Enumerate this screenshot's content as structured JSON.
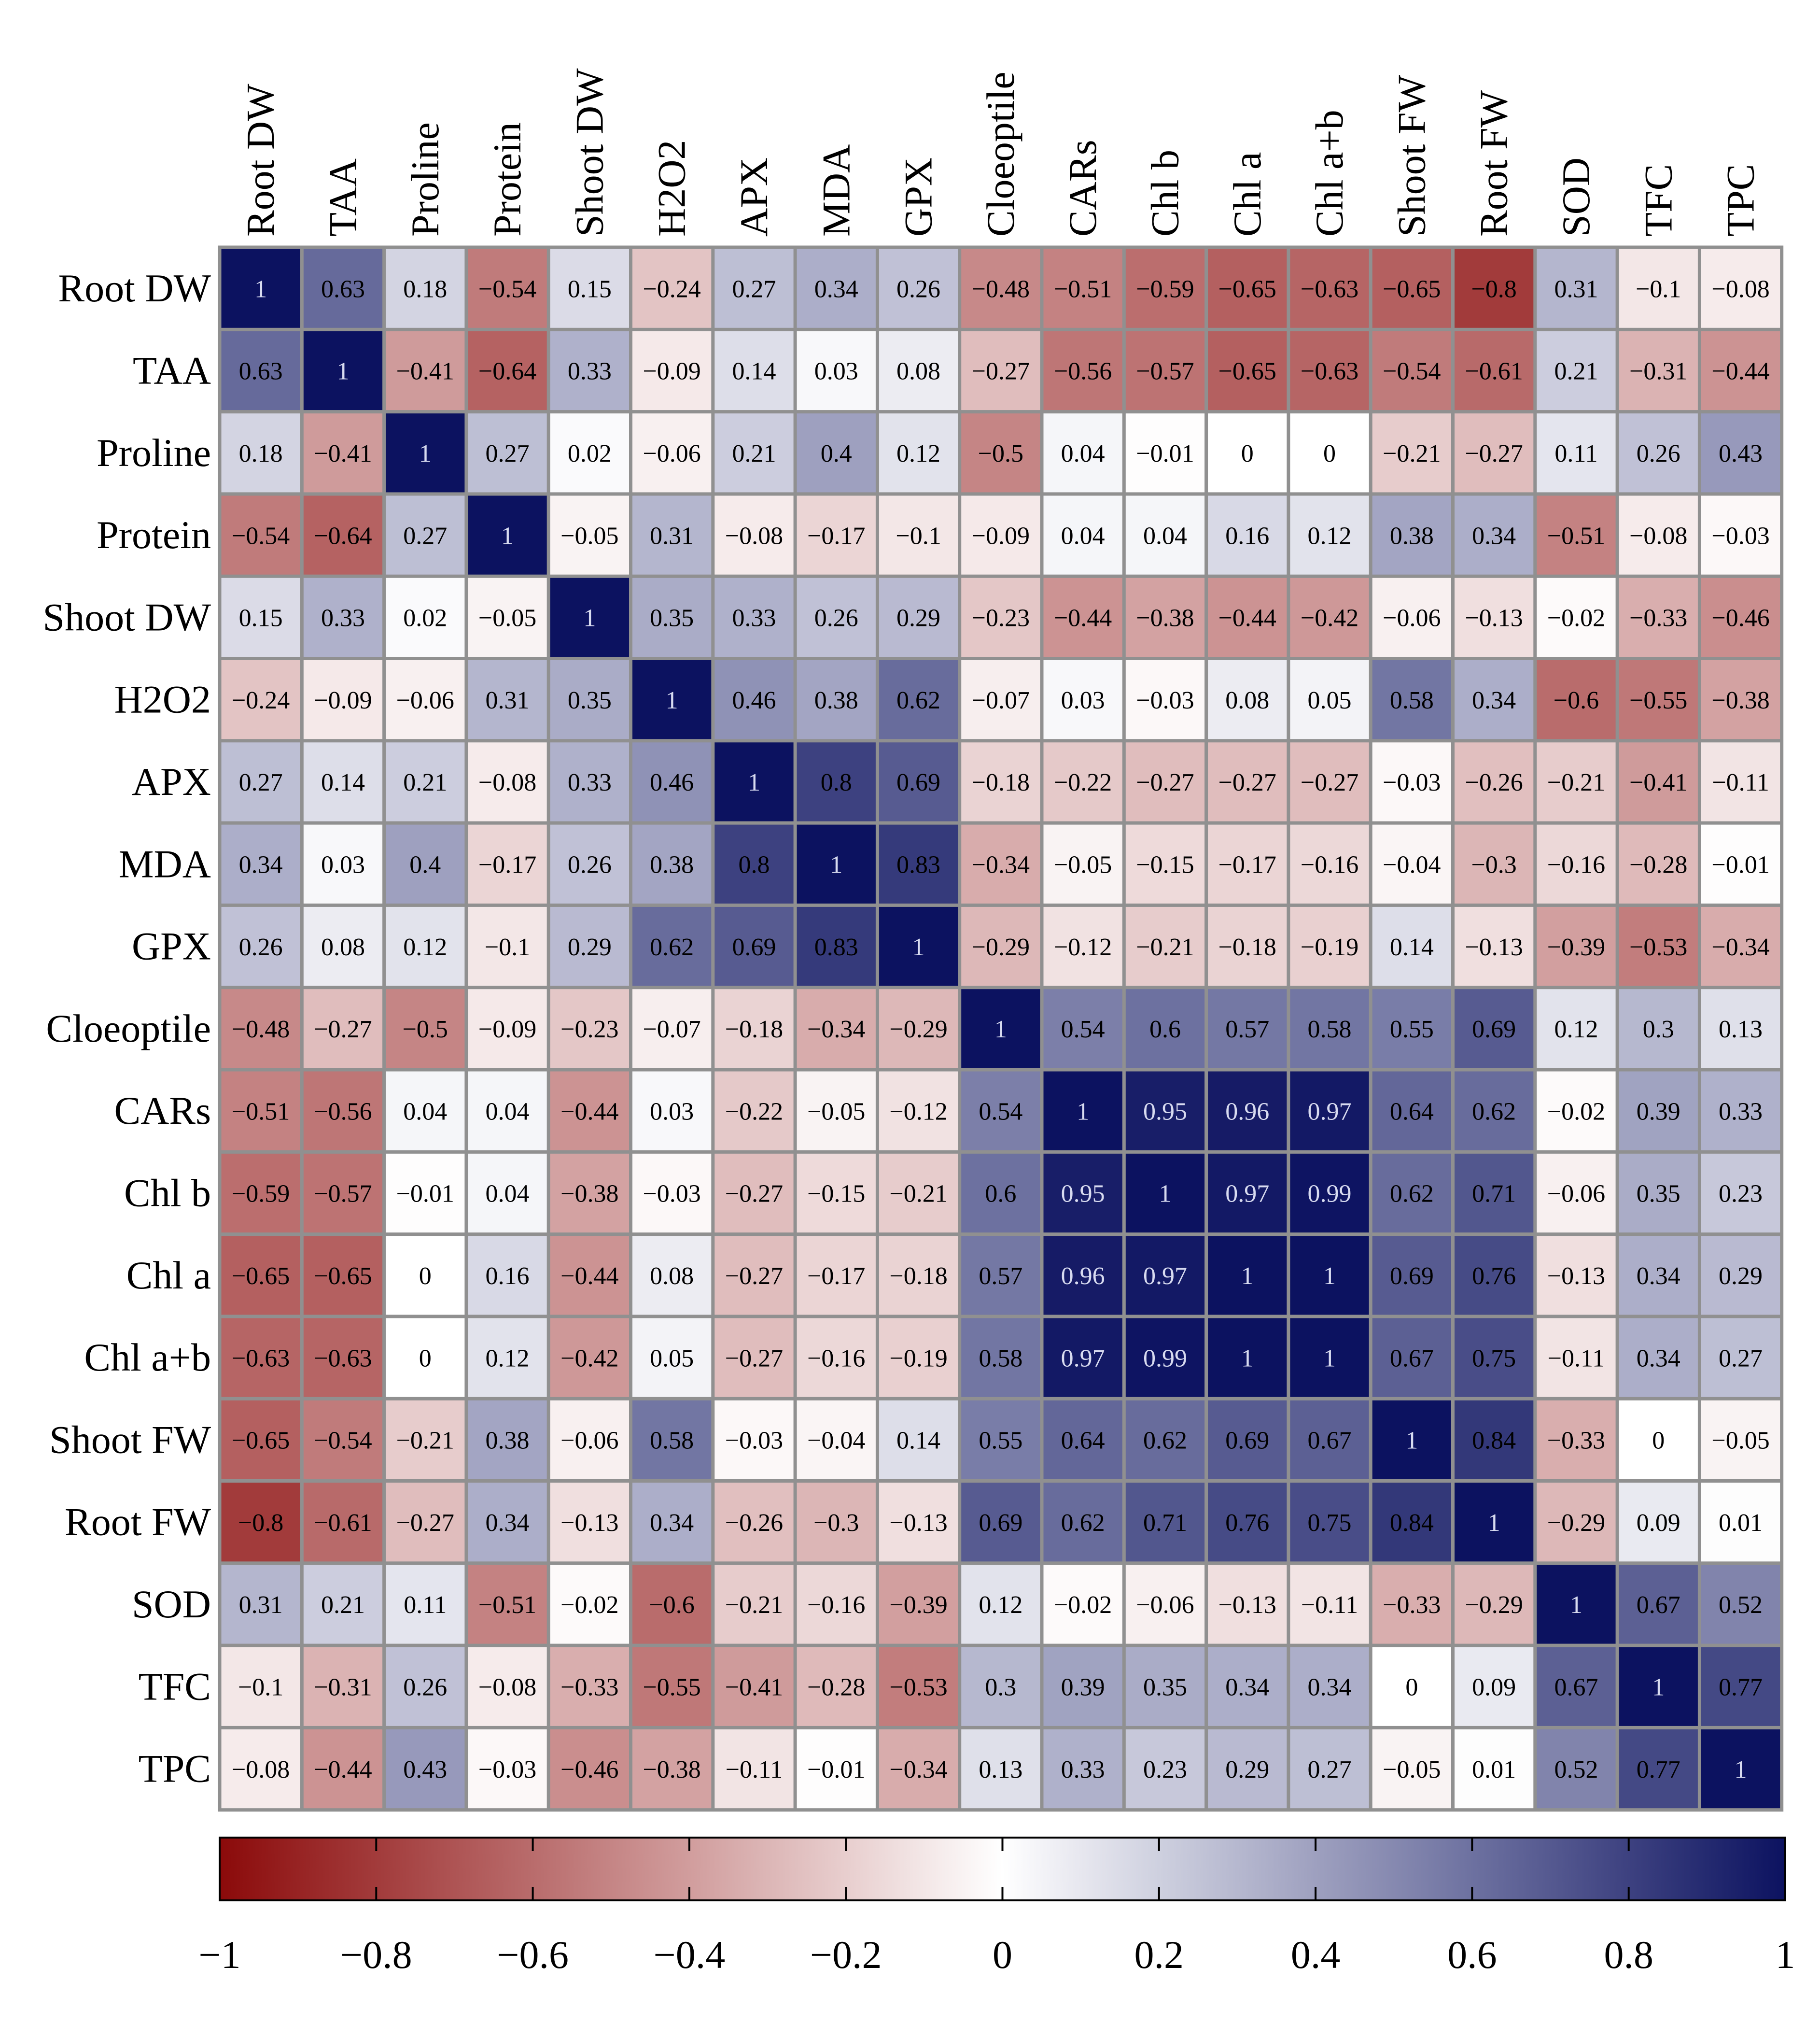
{
  "chart_data": {
    "type": "heatmap",
    "title": "",
    "xlabel": "",
    "ylabel": "",
    "variables": [
      "Root DW",
      "TAA",
      "Proline",
      "Protein",
      "Shoot DW",
      "H2O2",
      "APX",
      "MDA",
      "GPX",
      "Cloeoptile",
      "CARs",
      "Chl b",
      "Chl a",
      "Chl a+b",
      "Shoot FW",
      "Root FW",
      "SOD",
      "TFC",
      "TPC"
    ],
    "matrix": [
      [
        1,
        0.63,
        0.18,
        -0.54,
        0.15,
        -0.24,
        0.27,
        0.34,
        0.26,
        -0.48,
        -0.51,
        -0.59,
        -0.65,
        -0.63,
        -0.65,
        -0.8,
        0.31,
        -0.1,
        -0.08
      ],
      [
        0.63,
        1,
        -0.41,
        -0.64,
        0.33,
        -0.09,
        0.14,
        0.03,
        0.08,
        -0.27,
        -0.56,
        -0.57,
        -0.65,
        -0.63,
        -0.54,
        -0.61,
        0.21,
        -0.31,
        -0.44
      ],
      [
        0.18,
        -0.41,
        1,
        0.27,
        0.02,
        -0.06,
        0.21,
        0.4,
        0.12,
        -0.5,
        0.04,
        -0.01,
        0,
        0,
        -0.21,
        -0.27,
        0.11,
        0.26,
        0.43
      ],
      [
        -0.54,
        -0.64,
        0.27,
        1,
        -0.05,
        0.31,
        -0.08,
        -0.17,
        -0.1,
        -0.09,
        0.04,
        0.04,
        0.16,
        0.12,
        0.38,
        0.34,
        -0.51,
        -0.08,
        -0.03
      ],
      [
        0.15,
        0.33,
        0.02,
        -0.05,
        1,
        0.35,
        0.33,
        0.26,
        0.29,
        -0.23,
        -0.44,
        -0.38,
        -0.44,
        -0.42,
        -0.06,
        -0.13,
        -0.02,
        -0.33,
        -0.46
      ],
      [
        -0.24,
        -0.09,
        -0.06,
        0.31,
        0.35,
        1,
        0.46,
        0.38,
        0.62,
        -0.07,
        0.03,
        -0.03,
        0.08,
        0.05,
        0.58,
        0.34,
        -0.6,
        -0.55,
        -0.38
      ],
      [
        0.27,
        0.14,
        0.21,
        -0.08,
        0.33,
        0.46,
        1,
        0.8,
        0.69,
        -0.18,
        -0.22,
        -0.27,
        -0.27,
        -0.27,
        -0.03,
        -0.26,
        -0.21,
        -0.41,
        -0.11
      ],
      [
        0.34,
        0.03,
        0.4,
        -0.17,
        0.26,
        0.38,
        0.8,
        1,
        0.83,
        -0.34,
        -0.05,
        -0.15,
        -0.17,
        -0.16,
        -0.04,
        -0.3,
        -0.16,
        -0.28,
        -0.01
      ],
      [
        0.26,
        0.08,
        0.12,
        -0.1,
        0.29,
        0.62,
        0.69,
        0.83,
        1,
        -0.29,
        -0.12,
        -0.21,
        -0.18,
        -0.19,
        0.14,
        -0.13,
        -0.39,
        -0.53,
        -0.34
      ],
      [
        -0.48,
        -0.27,
        -0.5,
        -0.09,
        -0.23,
        -0.07,
        -0.18,
        -0.34,
        -0.29,
        1,
        0.54,
        0.6,
        0.57,
        0.58,
        0.55,
        0.69,
        0.12,
        0.3,
        0.13
      ],
      [
        -0.51,
        -0.56,
        0.04,
        0.04,
        -0.44,
        0.03,
        -0.22,
        -0.05,
        -0.12,
        0.54,
        1,
        0.95,
        0.96,
        0.97,
        0.64,
        0.62,
        -0.02,
        0.39,
        0.33
      ],
      [
        -0.59,
        -0.57,
        -0.01,
        0.04,
        -0.38,
        -0.03,
        -0.27,
        -0.15,
        -0.21,
        0.6,
        0.95,
        1,
        0.97,
        0.99,
        0.62,
        0.71,
        -0.06,
        0.35,
        0.23
      ],
      [
        -0.65,
        -0.65,
        0,
        0.16,
        -0.44,
        0.08,
        -0.27,
        -0.17,
        -0.18,
        0.57,
        0.96,
        0.97,
        1,
        1,
        0.69,
        0.76,
        -0.13,
        0.34,
        0.29
      ],
      [
        -0.63,
        -0.63,
        0,
        0.12,
        -0.42,
        0.05,
        -0.27,
        -0.16,
        -0.19,
        0.58,
        0.97,
        0.99,
        1,
        1,
        0.67,
        0.75,
        -0.11,
        0.34,
        0.27
      ],
      [
        -0.65,
        -0.54,
        -0.21,
        0.38,
        -0.06,
        0.58,
        -0.03,
        -0.04,
        0.14,
        0.55,
        0.64,
        0.62,
        0.69,
        0.67,
        1,
        0.84,
        -0.33,
        0,
        -0.05
      ],
      [
        -0.8,
        -0.61,
        -0.27,
        0.34,
        -0.13,
        0.34,
        -0.26,
        -0.3,
        -0.13,
        0.69,
        0.62,
        0.71,
        0.76,
        0.75,
        0.84,
        1,
        -0.29,
        0.09,
        0.01
      ],
      [
        0.31,
        0.21,
        0.11,
        -0.51,
        -0.02,
        -0.6,
        -0.21,
        -0.16,
        -0.39,
        0.12,
        -0.02,
        -0.06,
        -0.13,
        -0.11,
        -0.33,
        -0.29,
        1,
        0.67,
        0.52
      ],
      [
        -0.1,
        -0.31,
        0.26,
        -0.08,
        -0.33,
        -0.55,
        -0.41,
        -0.28,
        -0.53,
        0.3,
        0.39,
        0.35,
        0.34,
        0.34,
        0,
        0.09,
        0.67,
        1,
        0.77
      ],
      [
        -0.08,
        -0.44,
        0.43,
        -0.03,
        -0.46,
        -0.38,
        -0.11,
        -0.01,
        -0.34,
        0.13,
        0.33,
        0.23,
        0.29,
        0.27,
        -0.05,
        0.01,
        0.52,
        0.77,
        1
      ]
    ],
    "colorbar": {
      "min": -1,
      "max": 1,
      "ticks": [
        -1,
        -0.8,
        -0.6,
        -0.4,
        -0.2,
        0,
        0.2,
        0.4,
        0.6,
        0.8,
        1
      ],
      "tick_labels": [
        "−1",
        "−0.8",
        "−0.6",
        "−0.4",
        "−0.2",
        "0",
        "0.2",
        "0.4",
        "0.6",
        "0.8",
        "1"
      ]
    },
    "colors": {
      "negative": "#8b0a0a",
      "zero": "#ffffff",
      "positive": "#0c1260",
      "grid": "#909090"
    },
    "legend_position": "bottom",
    "grid": true
  }
}
